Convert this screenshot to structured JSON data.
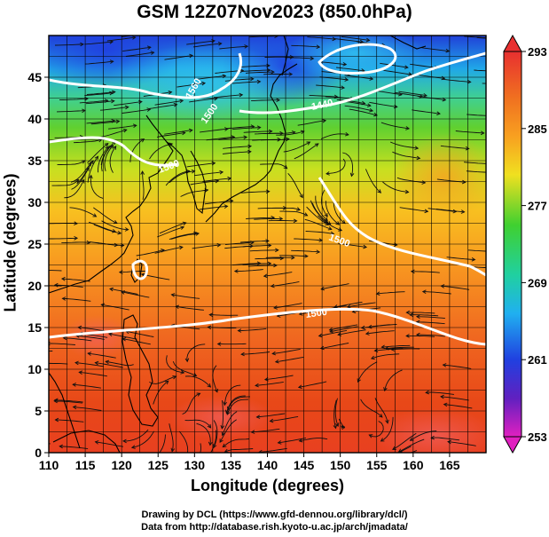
{
  "figure": {
    "title": "GSM 12Z07Nov2023 (850.0hPa)",
    "xlabel": "Longitude (degrees)",
    "ylabel": "Latitude  (degrees)",
    "credit_line1": "Drawing by DCL (https://www.gfd-dennou.org/library/dcl/)",
    "credit_line2": "Data from http://database.rish.kyoto-u.ac.jp/arch/jmadata/"
  },
  "map": {
    "lon_range": [
      110,
      170
    ],
    "lat_range": [
      0,
      50
    ],
    "lon_ticks": [
      "110",
      "115",
      "120",
      "125",
      "130",
      "135",
      "140",
      "145",
      "150",
      "155",
      "160",
      "165"
    ],
    "lat_ticks": [
      "0",
      "5",
      "10",
      "15",
      "20",
      "25",
      "30",
      "35",
      "40",
      "45"
    ],
    "grid": true,
    "field": "temperature (K) with streamlines",
    "contour_labels": [
      "1560",
      "1440",
      "1500",
      "1500",
      "1500",
      "1500"
    ],
    "colors": {
      "cold": "#1f3fd8",
      "cool": "#22c8f0",
      "mild": "#3ec83a",
      "warm": "#f0a020",
      "hot": "#e83818",
      "contour": "#ffffff"
    }
  },
  "colorbar": {
    "labels": [
      "293",
      "285",
      "277",
      "269",
      "261",
      "253"
    ],
    "min": 253,
    "max": 293
  }
}
